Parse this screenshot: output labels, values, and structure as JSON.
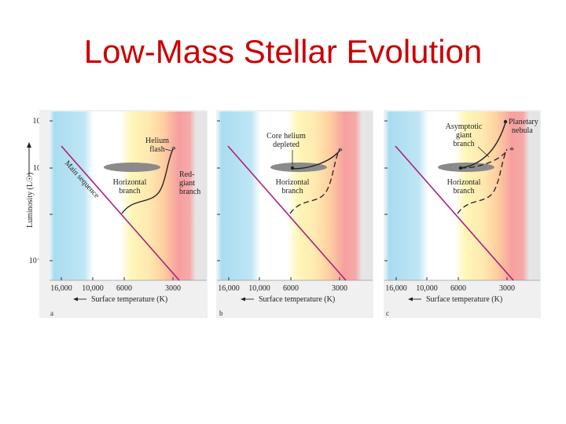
{
  "slide": {
    "title": "Low-Mass Stellar Evolution"
  },
  "y_axis": {
    "label": "Luminosity (L☉)",
    "ticks": [
      {
        "label": "10⁴",
        "exp": 4
      },
      {
        "label": "10²",
        "exp": 2
      },
      {
        "label": "1",
        "exp": 0
      },
      {
        "label": "10⁻²",
        "exp": -2
      }
    ]
  },
  "x_axis": {
    "label": "Surface temperature (K)",
    "ticks": [
      "16,000",
      "10,000",
      "6000",
      "3000"
    ]
  },
  "panels": [
    {
      "letter": "a",
      "labels": {
        "main_sequence": "Main sequence",
        "helium_flash": [
          "Helium",
          "flash"
        ],
        "horizontal_branch": [
          "Horizontal",
          "branch"
        ],
        "red_giant_branch": [
          "Red-",
          "giant",
          "branch"
        ]
      }
    },
    {
      "letter": "b",
      "labels": {
        "core_helium_depleted": [
          "Core helium",
          "depleted"
        ],
        "horizontal_branch": [
          "Horizontal",
          "branch"
        ]
      }
    },
    {
      "letter": "c",
      "labels": {
        "asymptotic_giant_branch": [
          "Asymptotic",
          "giant",
          "branch"
        ],
        "planetary_nebula": [
          "Planetary",
          "nebula"
        ],
        "horizontal_branch": [
          "Horizontal",
          "branch"
        ]
      }
    }
  ],
  "colors": {
    "title": "#cc0000",
    "main_sequence": "#b0207a",
    "track": "#222222",
    "horizontal_branch_blob": "#8a8a8a",
    "band_blue": "#a9dcf0",
    "band_yellow": "#fff6b8",
    "band_orange": "#ffd0a0",
    "band_red": "#f6a0a0",
    "band_gray": "#e4e4e4",
    "panel_background": "#f0f0f0"
  }
}
